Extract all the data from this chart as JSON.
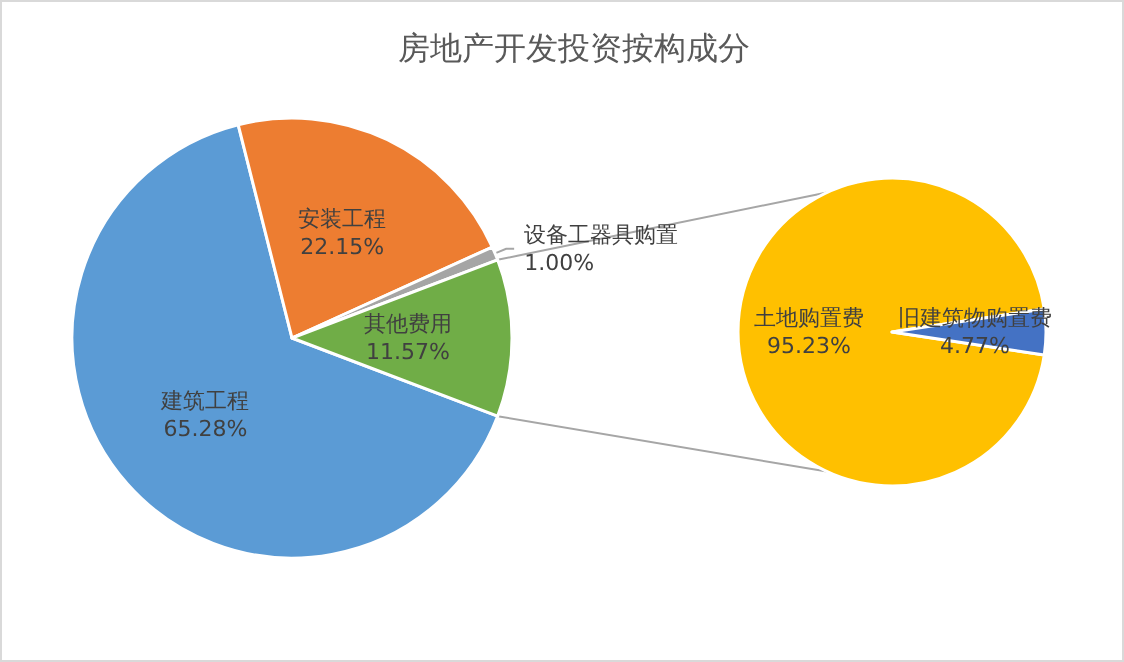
{
  "chart_data": [
    {
      "type": "pie",
      "title": "房地产开发投资按构成分",
      "categories": [
        "建筑工程",
        "安装工程",
        "设备工器具购置",
        "其他费用"
      ],
      "values": [
        65.28,
        22.15,
        1.0,
        11.57
      ],
      "value_labels": [
        "65.28%",
        "22.15%",
        "1.00%",
        "11.57%"
      ],
      "colors": [
        "#5b9bd5",
        "#ed7d31",
        "#a5a5a5",
        "#70ad47"
      ]
    },
    {
      "type": "pie",
      "categories": [
        "土地购置费",
        "旧建筑物购置费"
      ],
      "values": [
        95.23,
        4.77
      ],
      "value_labels": [
        "95.23%",
        "4.77%"
      ],
      "colors": [
        "#ffc000",
        "#4472c4"
      ]
    }
  ]
}
